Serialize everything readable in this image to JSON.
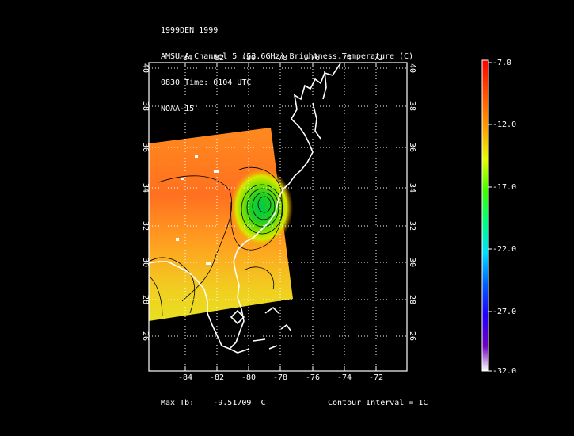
{
  "header": {
    "line1": "1999DEN 1999",
    "line2": "AMSU-A Channel 5 (53.6GHz) Brightness Temperature (C)",
    "line3": "0830 Time: 0104 UTC",
    "line4": "NOAA-15"
  },
  "map": {
    "lon_ticks": [
      "-84",
      "-82",
      "-80",
      "-78",
      "-76",
      "-74",
      "-72"
    ],
    "lat_ticks": [
      "40",
      "38",
      "36",
      "34",
      "32",
      "30",
      "28",
      "26"
    ],
    "lon_range": [
      -86,
      -70
    ],
    "lat_range": [
      24,
      40
    ],
    "grid": true
  },
  "colorbar": {
    "labels": [
      "-7.0",
      "-12.0",
      "-17.0",
      "-22.0",
      "-27.0",
      "-32.0"
    ],
    "max": -7.0,
    "min": -32.0
  },
  "footer": {
    "max_label": "Max Tb:",
    "max_value": "-9.51709",
    "max_unit": "C",
    "contour": "Contour Interval = 1C"
  }
}
